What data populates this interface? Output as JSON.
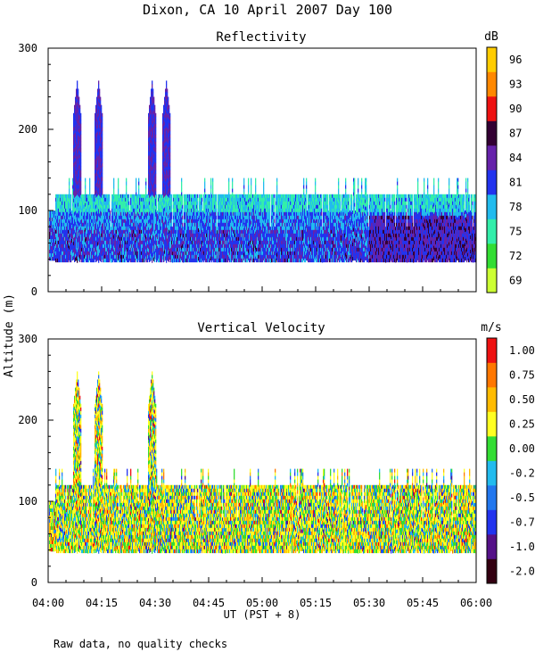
{
  "figure": {
    "title": "Dixon, CA 10 April 2007  Day 100",
    "shared_ylabel": "Altitude (m)",
    "xlabel": "UT  (PST + 8)",
    "note": "Raw data, no quality checks",
    "xticks": [
      "04:00",
      "04:15",
      "04:30",
      "04:45",
      "05:00",
      "05:15",
      "05:30",
      "05:45",
      "06:00"
    ]
  },
  "chart_data": [
    {
      "type": "heatmap",
      "title": "Reflectivity",
      "colorbar_unit": "dB",
      "ylabel": "Altitude (m)",
      "xlabel": "UT  (PST + 8)",
      "x_range": [
        "04:00",
        "06:00"
      ],
      "ylim": [
        0,
        300
      ],
      "yticks": [
        0,
        100,
        200,
        300
      ],
      "colorbar": {
        "levels": [
          "69",
          "72",
          "75",
          "78",
          "81",
          "84",
          "87",
          "90",
          "93",
          "96"
        ],
        "colors": [
          "#ccff33",
          "#33dd33",
          "#33eeaa",
          "#22bbee",
          "#2233ee",
          "#6622aa",
          "#330033",
          "#ee1111",
          "#ff8800",
          "#ffcc00"
        ]
      },
      "features": {
        "data_floor_m": 40,
        "typical_top_m": 120,
        "max_top_m": 260,
        "tall_plume_times": [
          "04:08",
          "04:14",
          "04:29",
          "04:33"
        ],
        "enhanced_reflectivity_window": [
          "05:30",
          "06:00"
        ]
      }
    },
    {
      "type": "heatmap",
      "title": "Vertical Velocity",
      "colorbar_unit": "m/s",
      "ylabel": "Altitude (m)",
      "xlabel": "UT  (PST + 8)",
      "x_range": [
        "04:00",
        "06:00"
      ],
      "ylim": [
        0,
        300
      ],
      "yticks": [
        0,
        100,
        200,
        300
      ],
      "colorbar": {
        "levels": [
          "-2.00",
          "-1.00",
          "-0.75",
          "-0.50",
          "-0.25",
          "0.00",
          "0.25",
          "0.50",
          "0.75",
          "1.00"
        ],
        "colors": [
          "#330011",
          "#551188",
          "#2233ee",
          "#2277ee",
          "#22bbee",
          "#33dd33",
          "#ffff22",
          "#ffbb00",
          "#ff7700",
          "#ee1111"
        ]
      },
      "features": {
        "data_floor_m": 40,
        "typical_top_m": 120,
        "max_top_m": 260,
        "tall_plume_times": [
          "04:08",
          "04:14",
          "04:29"
        ]
      }
    }
  ]
}
